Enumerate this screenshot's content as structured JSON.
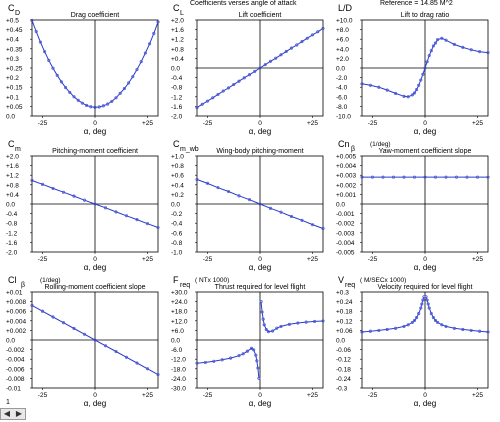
{
  "header": {
    "center_title": "Coefficients verses angle of attack",
    "reference": "Reference = 14.85 M^2"
  },
  "footer": {
    "page_number": "1",
    "scroll_left_icon": "triangle-left-icon",
    "scroll_right_icon": "triangle-right-icon"
  },
  "colors": {
    "line": "#2b3bc8",
    "marker": "#4a5ad8",
    "axis": "#000000",
    "grid": "#000000"
  },
  "chart_data": [
    {
      "id": "cd",
      "type": "line",
      "ylabel_main": "C",
      "ylabel_sub": "D",
      "unit": "",
      "title": "Drag coefficient",
      "xlabel": "α, deg",
      "xlim": [
        -30,
        30
      ],
      "ylim": [
        0,
        0.5
      ],
      "xticks": [
        "-25",
        "0",
        "+25"
      ],
      "yticks": [
        "+0.5",
        "+0.45",
        "+0.4",
        "+0.35",
        "+0.3",
        "+0.25",
        "+0.2",
        "+0.15",
        "+0.1",
        "+0.05",
        "0.0"
      ],
      "x": [
        -30,
        -28,
        -26,
        -24,
        -22,
        -20,
        -18,
        -16,
        -14,
        -12,
        -10,
        -8,
        -6,
        -4,
        -2,
        0,
        2,
        4,
        6,
        8,
        10,
        12,
        14,
        16,
        18,
        20,
        22,
        24,
        26,
        28,
        30
      ],
      "y": [
        0.498,
        0.44,
        0.385,
        0.335,
        0.29,
        0.249,
        0.212,
        0.178,
        0.148,
        0.123,
        0.1,
        0.082,
        0.067,
        0.055,
        0.048,
        0.045,
        0.047,
        0.053,
        0.062,
        0.076,
        0.095,
        0.118,
        0.143,
        0.172,
        0.205,
        0.242,
        0.283,
        0.328,
        0.376,
        0.43,
        0.49
      ]
    },
    {
      "id": "cl",
      "type": "line",
      "ylabel_main": "C",
      "ylabel_sub": "L",
      "unit": "",
      "title": "Lift coefficient",
      "xlabel": "α, deg",
      "xlim": [
        -30,
        30
      ],
      "ylim": [
        -2.0,
        2.0
      ],
      "xticks": [
        "-25",
        "0",
        "+25"
      ],
      "yticks": [
        "+2.0",
        "+1.6",
        "+1.2",
        "+0.8",
        "+0.4",
        "0.0",
        "-0.4",
        "-0.8",
        "-1.2",
        "-1.6",
        "-2.0"
      ],
      "x": [
        -30,
        -27.5,
        -25,
        -22.5,
        -20,
        -17.5,
        -15,
        -12.5,
        -10,
        -7.5,
        -5,
        -2.5,
        0,
        2.5,
        5,
        7.5,
        10,
        12.5,
        15,
        17.5,
        20,
        22.5,
        25,
        27.5,
        30
      ],
      "y": [
        -1.65,
        -1.51,
        -1.38,
        -1.24,
        -1.1,
        -0.96,
        -0.83,
        -0.69,
        -0.55,
        -0.41,
        -0.28,
        -0.14,
        0.0,
        0.14,
        0.28,
        0.41,
        0.55,
        0.69,
        0.83,
        0.96,
        1.1,
        1.24,
        1.38,
        1.51,
        1.65
      ]
    },
    {
      "id": "ld",
      "type": "line",
      "ylabel_main": "L/D",
      "ylabel_sub": "",
      "unit": "",
      "title": "Lift to drag ratio",
      "xlabel": "α, deg",
      "xlim": [
        -30,
        30
      ],
      "ylim": [
        -10,
        10
      ],
      "xticks": [
        "-25",
        "0",
        "+25"
      ],
      "yticks": [
        "+10.0",
        "+8.0",
        "+6.0",
        "+4.0",
        "+2.0",
        "0.0",
        "-2.0",
        "-4.0",
        "-6.0",
        "-8.0",
        "-10.0"
      ],
      "x": [
        -30,
        -26,
        -22,
        -18,
        -14,
        -10,
        -8,
        -6,
        -5,
        -4,
        -3,
        -2,
        -1,
        0,
        1,
        2,
        3,
        4,
        5,
        6,
        8,
        10,
        14,
        18,
        22,
        26,
        30
      ],
      "y": [
        -3.3,
        -3.6,
        -4.0,
        -4.6,
        -5.3,
        -5.9,
        -6.0,
        -5.6,
        -5.2,
        -4.5,
        -3.6,
        -2.5,
        -1.3,
        0.0,
        1.3,
        2.6,
        3.6,
        4.6,
        5.2,
        5.9,
        6.2,
        5.8,
        4.9,
        4.3,
        3.8,
        3.4,
        3.2
      ]
    },
    {
      "id": "cm",
      "type": "line",
      "ylabel_main": "C",
      "ylabel_sub": "m",
      "unit": "",
      "title": "Pitching-moment coefficient",
      "xlabel": "α, deg",
      "xlim": [
        -30,
        30
      ],
      "ylim": [
        -2.0,
        2.0
      ],
      "xticks": [
        "-25",
        "0",
        "+25"
      ],
      "yticks": [
        "+2.0",
        "+1.6",
        "+1.2",
        "+0.8",
        "+0.4",
        "0.0",
        "-0.4",
        "-0.8",
        "-1.2",
        "-1.6",
        "-2.0"
      ],
      "x": [
        -30,
        -25,
        -20,
        -15,
        -10,
        -5,
        0,
        5,
        10,
        15,
        20,
        25,
        30
      ],
      "y": [
        0.98,
        0.82,
        0.65,
        0.49,
        0.33,
        0.16,
        0.0,
        -0.16,
        -0.33,
        -0.49,
        -0.65,
        -0.82,
        -0.98
      ]
    },
    {
      "id": "cmwb",
      "type": "line",
      "ylabel_main": "C",
      "ylabel_sub": "m_wb",
      "unit": "",
      "title": "Wing-body pitching-moment",
      "xlabel": "α, deg",
      "xlim": [
        -30,
        30
      ],
      "ylim": [
        -1.0,
        1.0
      ],
      "xticks": [
        "-25",
        "0",
        "+25"
      ],
      "yticks": [
        "+1.0",
        "+0.8",
        "+0.6",
        "+0.4",
        "+0.2",
        "0.0",
        "-0.2",
        "-0.4",
        "-0.6",
        "-0.8",
        "-1.0"
      ],
      "x": [
        -30,
        -25,
        -20,
        -15,
        -10,
        -5,
        0,
        5,
        10,
        15,
        20,
        25,
        30
      ],
      "y": [
        0.51,
        0.43,
        0.34,
        0.26,
        0.17,
        0.09,
        0.0,
        -0.09,
        -0.17,
        -0.26,
        -0.34,
        -0.43,
        -0.51
      ]
    },
    {
      "id": "cnb",
      "type": "line",
      "ylabel_main": "Cn",
      "ylabel_sub": "β",
      "unit": "(1/deg)",
      "title": "Yaw-moment coefficient slope",
      "xlabel": "α, deg",
      "xlim": [
        -30,
        30
      ],
      "ylim": [
        -0.005,
        0.005
      ],
      "xticks": [
        "-25",
        "0",
        "+25"
      ],
      "yticks": [
        "+0.005",
        "+0.004",
        "+0.003",
        "+0.002",
        "+0.001",
        "0.0",
        "-0.001",
        "-0.002",
        "-0.003",
        "-0.004",
        "-0.005"
      ],
      "x": [
        -30,
        -25,
        -20,
        -15,
        -10,
        -5,
        0,
        5,
        10,
        15,
        20,
        25,
        30
      ],
      "y": [
        0.0028,
        0.0028,
        0.0028,
        0.0028,
        0.0028,
        0.0028,
        0.0028,
        0.0028,
        0.0028,
        0.0028,
        0.0028,
        0.0028,
        0.0028
      ]
    },
    {
      "id": "clb",
      "type": "line",
      "ylabel_main": "Cl",
      "ylabel_sub": "β",
      "unit": "(1/deg)",
      "title": "Rolling-moment coefficient slope",
      "xlabel": "α, deg",
      "xlim": [
        -30,
        30
      ],
      "ylim": [
        -0.01,
        0.01
      ],
      "xticks": [
        "-25",
        "0",
        "+25"
      ],
      "yticks": [
        "+0.01",
        "+0.008",
        "+0.006",
        "+0.004",
        "+0.002",
        "0.0",
        "-0.002",
        "-0.004",
        "-0.006",
        "-0.008",
        "-0.01"
      ],
      "x": [
        -30,
        -25,
        -20,
        -15,
        -10,
        -5,
        0,
        5,
        10,
        15,
        20,
        25,
        30
      ],
      "y": [
        0.0072,
        0.006,
        0.0048,
        0.0036,
        0.0024,
        0.0012,
        0.0,
        -0.0012,
        -0.0024,
        -0.0036,
        -0.0048,
        -0.006,
        -0.0072
      ]
    },
    {
      "id": "freq",
      "type": "line",
      "ylabel_main": "F",
      "ylabel_sub": "req",
      "unit": "( NTx 1000)",
      "title": "Thrust required for level flight",
      "xlabel": "α, deg",
      "xlim": [
        -30,
        30
      ],
      "ylim": [
        -30,
        30
      ],
      "xticks": [
        "-25",
        "0",
        "+25"
      ],
      "yticks": [
        "+30.0",
        "+24.0",
        "+18.0",
        "+12.0",
        "+6.0",
        "0.0",
        "-6.0",
        "-12.0",
        "-18.0",
        "-24.0",
        "-30.0"
      ],
      "segments": [
        {
          "x": [
            -30,
            -26,
            -22,
            -18,
            -14,
            -10,
            -8,
            -6,
            -4,
            -3,
            -2,
            -1.5,
            -1,
            -0.5
          ],
          "y": [
            -14.5,
            -14.0,
            -13.3,
            -12.4,
            -11.3,
            -9.8,
            -8.6,
            -7.0,
            -5.2,
            -6.2,
            -9.5,
            -13.0,
            -17.5,
            -24.0
          ]
        },
        {
          "x": [
            0.5,
            1,
            1.5,
            2,
            3,
            4,
            6,
            8,
            10,
            14,
            18,
            22,
            26,
            30
          ],
          "y": [
            24.0,
            17.5,
            13.0,
            9.5,
            6.5,
            5.2,
            5.6,
            7.4,
            8.5,
            9.8,
            10.6,
            11.2,
            11.6,
            11.9
          ]
        }
      ]
    },
    {
      "id": "vreq",
      "type": "line",
      "ylabel_main": "V",
      "ylabel_sub": "req",
      "unit": "( M/SECx 1000)",
      "title": "Velocity required for level flight",
      "xlabel": "α, deg",
      "xlim": [
        -30,
        30
      ],
      "ylim": [
        -0.3,
        0.3
      ],
      "xticks": [
        "-25",
        "0",
        "+25"
      ],
      "yticks": [
        "+0.3",
        "+0.24",
        "+0.18",
        "+0.12",
        "+0.06",
        "0.0",
        "-0.06",
        "-0.12",
        "-0.18",
        "-0.24",
        "-0.3"
      ],
      "segments": [
        {
          "x": [
            -30,
            -26,
            -22,
            -18,
            -14,
            -10,
            -8,
            -6,
            -5,
            -4,
            -3,
            -2,
            -1.5,
            -1,
            -0.5
          ],
          "y": [
            0.05,
            0.055,
            0.06,
            0.066,
            0.073,
            0.085,
            0.095,
            0.11,
            0.122,
            0.14,
            0.165,
            0.2,
            0.225,
            0.25,
            0.27
          ]
        },
        {
          "x": [
            0.5,
            1,
            1.5,
            2,
            3,
            4,
            5,
            6,
            8,
            10,
            14,
            18,
            22,
            26,
            30
          ],
          "y": [
            0.27,
            0.25,
            0.225,
            0.2,
            0.165,
            0.14,
            0.122,
            0.11,
            0.095,
            0.085,
            0.073,
            0.066,
            0.06,
            0.055,
            0.05
          ]
        }
      ]
    }
  ]
}
